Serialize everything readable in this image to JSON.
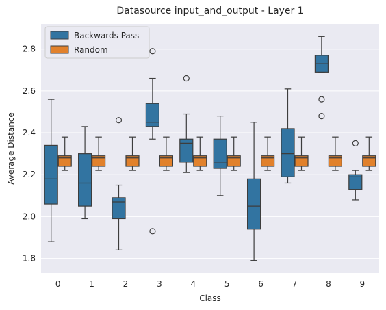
{
  "chart_data": {
    "type": "box",
    "title": "Datasource input_and_output - Layer 1",
    "xlabel": "Class",
    "ylabel": "Average Distance",
    "categories": [
      "0",
      "1",
      "2",
      "3",
      "4",
      "5",
      "6",
      "7",
      "8",
      "9"
    ],
    "ylim": [
      1.73,
      2.92
    ],
    "yticks": [
      "1.8",
      "2.0",
      "2.2",
      "2.4",
      "2.6",
      "2.8"
    ],
    "grid": true,
    "legend_position": "top-left",
    "series": [
      {
        "name": "Backwards Pass",
        "color": "#3274a1",
        "boxes": [
          {
            "whislo": 1.88,
            "q1": 2.06,
            "med": 2.18,
            "q3": 2.34,
            "whishi": 2.56,
            "fliers": []
          },
          {
            "whislo": 1.99,
            "q1": 2.05,
            "med": 2.16,
            "q3": 2.3,
            "whishi": 2.43,
            "fliers": []
          },
          {
            "whislo": 1.84,
            "q1": 1.99,
            "med": 2.07,
            "q3": 2.09,
            "whishi": 2.15,
            "fliers": [
              2.46
            ]
          },
          {
            "whislo": 2.37,
            "q1": 2.43,
            "med": 2.45,
            "q3": 2.54,
            "whishi": 2.66,
            "fliers": [
              2.79,
              1.93
            ]
          },
          {
            "whislo": 2.21,
            "q1": 2.26,
            "med": 2.35,
            "q3": 2.37,
            "whishi": 2.49,
            "fliers": [
              2.66
            ]
          },
          {
            "whislo": 2.1,
            "q1": 2.23,
            "med": 2.26,
            "q3": 2.37,
            "whishi": 2.48,
            "fliers": []
          },
          {
            "whislo": 1.79,
            "q1": 1.94,
            "med": 2.05,
            "q3": 2.18,
            "whishi": 2.45,
            "fliers": []
          },
          {
            "whislo": 2.16,
            "q1": 2.19,
            "med": 2.3,
            "q3": 2.42,
            "whishi": 2.61,
            "fliers": []
          },
          {
            "whislo": 2.69,
            "q1": 2.69,
            "med": 2.73,
            "q3": 2.77,
            "whishi": 2.86,
            "fliers": [
              2.56,
              2.48
            ]
          },
          {
            "whislo": 2.08,
            "q1": 2.13,
            "med": 2.19,
            "q3": 2.2,
            "whishi": 2.22,
            "fliers": [
              2.35
            ]
          }
        ]
      },
      {
        "name": "Random",
        "color": "#e1812c",
        "boxes": [
          {
            "whislo": 2.22,
            "q1": 2.24,
            "med": 2.28,
            "q3": 2.29,
            "whishi": 2.38,
            "fliers": []
          },
          {
            "whislo": 2.22,
            "q1": 2.24,
            "med": 2.28,
            "q3": 2.29,
            "whishi": 2.38,
            "fliers": []
          },
          {
            "whislo": 2.22,
            "q1": 2.24,
            "med": 2.28,
            "q3": 2.29,
            "whishi": 2.38,
            "fliers": []
          },
          {
            "whislo": 2.22,
            "q1": 2.24,
            "med": 2.28,
            "q3": 2.29,
            "whishi": 2.38,
            "fliers": []
          },
          {
            "whislo": 2.22,
            "q1": 2.24,
            "med": 2.28,
            "q3": 2.29,
            "whishi": 2.38,
            "fliers": []
          },
          {
            "whislo": 2.22,
            "q1": 2.24,
            "med": 2.28,
            "q3": 2.29,
            "whishi": 2.38,
            "fliers": []
          },
          {
            "whislo": 2.22,
            "q1": 2.24,
            "med": 2.28,
            "q3": 2.29,
            "whishi": 2.38,
            "fliers": []
          },
          {
            "whislo": 2.22,
            "q1": 2.24,
            "med": 2.28,
            "q3": 2.29,
            "whishi": 2.38,
            "fliers": []
          },
          {
            "whislo": 2.22,
            "q1": 2.24,
            "med": 2.28,
            "q3": 2.29,
            "whishi": 2.38,
            "fliers": []
          },
          {
            "whislo": 2.22,
            "q1": 2.24,
            "med": 2.28,
            "q3": 2.29,
            "whishi": 2.38,
            "fliers": []
          }
        ]
      }
    ],
    "style": {
      "plot_background": "#eaeaf2",
      "grid_color": "#ffffff",
      "line_color": "#3d3d3d"
    }
  }
}
